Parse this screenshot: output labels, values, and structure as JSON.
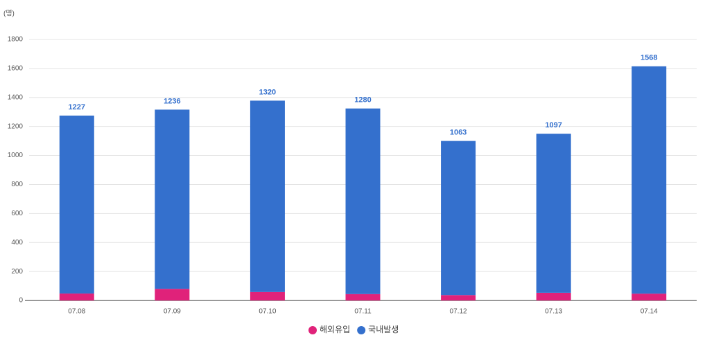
{
  "chart_data": {
    "type": "stacked-bar",
    "y_unit": "(명)",
    "categories": [
      "07.08",
      "07.09",
      "07.10",
      "07.11",
      "07.12",
      "07.13",
      "07.14"
    ],
    "series": [
      {
        "name": "해외유입",
        "color": "#e0227a",
        "values": [
          48,
          80,
          58,
          44,
          37,
          53,
          47
        ]
      },
      {
        "name": "국내발생",
        "color": "#3470cd",
        "values": [
          1227,
          1236,
          1320,
          1280,
          1063,
          1097,
          1568
        ]
      }
    ],
    "ylim": [
      0,
      1800
    ],
    "yticks": [
      0,
      200,
      400,
      600,
      800,
      1000,
      1200,
      1400,
      1600,
      1800
    ],
    "grid": true
  }
}
